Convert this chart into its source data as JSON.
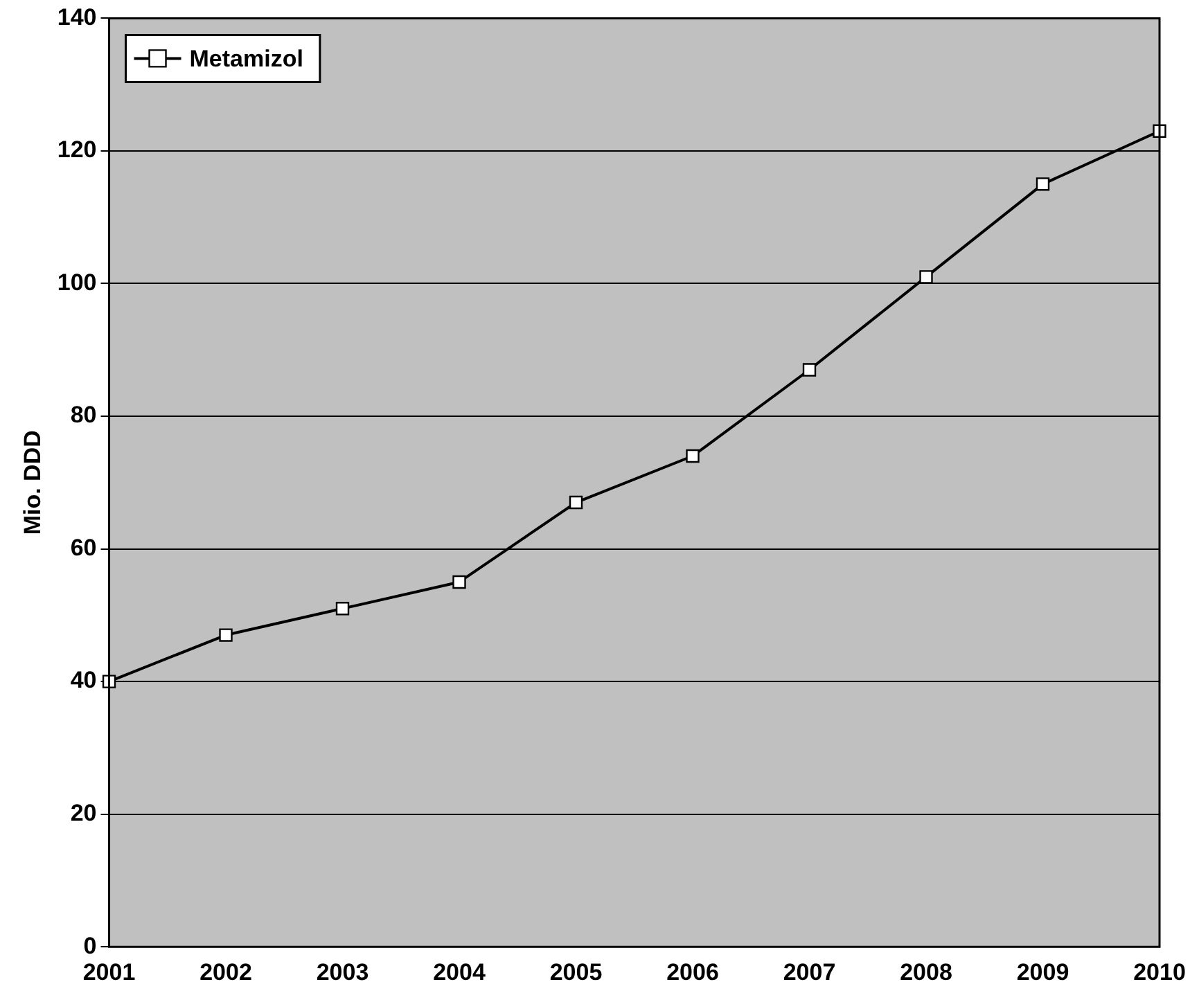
{
  "chart_data": {
    "type": "line",
    "ylabel": "Mio. DDD",
    "categories": [
      "2001",
      "2002",
      "2003",
      "2004",
      "2005",
      "2006",
      "2007",
      "2008",
      "2009",
      "2010"
    ],
    "series": [
      {
        "name": "Metamizol",
        "color": "#000000",
        "values": [
          40,
          47,
          51,
          55,
          67,
          74,
          87,
          101,
          115,
          123
        ]
      }
    ],
    "ylim": [
      0,
      140
    ],
    "yticks": [
      0,
      20,
      40,
      60,
      80,
      100,
      120,
      140
    ],
    "grid": "y",
    "legend": "top left",
    "marker": "square",
    "line_style": "solid"
  }
}
